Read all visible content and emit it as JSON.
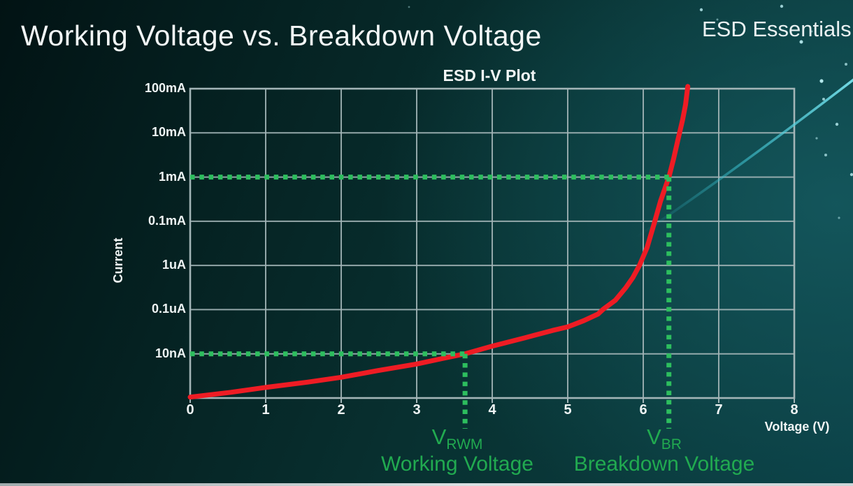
{
  "slide": {
    "title": "Working Voltage vs. Breakdown Voltage",
    "brand": "ESD Essentials"
  },
  "colors": {
    "background_teal": "#0a3e44",
    "grid_gray": "#a3b5b7",
    "curve_red": "#ee1c24",
    "marker_green_text": "#21aa50",
    "marker_green_dots": "#2dbe5e",
    "swoosh_cyan": "#49cfdd",
    "text_white": "#f3f7f7"
  },
  "chart_data": {
    "type": "line",
    "title": "ESD I-V Plot",
    "xlabel": "Voltage (V)",
    "ylabel": "Current",
    "xlim": [
      0,
      8
    ],
    "x_ticks": [
      "0",
      "1",
      "2",
      "3",
      "4",
      "5",
      "6",
      "7",
      "8"
    ],
    "y_scale": "log-decades",
    "y_tick_labels_top_to_bottom": [
      "100mA",
      "10mA",
      "1mA",
      "0.1mA",
      "1uA",
      "0.1uA",
      "10nA"
    ],
    "y_levels": 7,
    "grid": true,
    "legend": "none",
    "series": [
      {
        "name": "ESD device I-V curve",
        "color": "#ee1c24",
        "points_voltage_vs_level": [
          [
            0,
            0.02
          ],
          [
            0.54,
            0.13
          ],
          [
            1.0,
            0.24
          ],
          [
            1.56,
            0.36
          ],
          [
            2.0,
            0.47
          ],
          [
            2.48,
            0.62
          ],
          [
            3.0,
            0.77
          ],
          [
            3.41,
            0.92
          ],
          [
            3.64,
            1.0
          ],
          [
            3.99,
            1.17
          ],
          [
            4.43,
            1.36
          ],
          [
            4.8,
            1.53
          ],
          [
            5.0,
            1.61
          ],
          [
            5.21,
            1.75
          ],
          [
            5.4,
            1.9
          ],
          [
            5.47,
            2.01
          ],
          [
            5.63,
            2.21
          ],
          [
            5.77,
            2.5
          ],
          [
            5.86,
            2.72
          ],
          [
            5.95,
            3.0
          ],
          [
            6.05,
            3.4
          ],
          [
            6.14,
            3.92
          ],
          [
            6.23,
            4.46
          ],
          [
            6.34,
            5.0
          ],
          [
            6.4,
            5.4
          ],
          [
            6.46,
            5.85
          ],
          [
            6.52,
            6.29
          ],
          [
            6.56,
            6.64
          ],
          [
            6.59,
            7.05
          ]
        ]
      }
    ],
    "annotations": {
      "v_rwm": {
        "symbol": "V",
        "subscript": "RWM",
        "caption": "Working Voltage",
        "voltage": 3.64,
        "level": 1,
        "current_label": "10nA"
      },
      "v_br": {
        "symbol": "V",
        "subscript": "BR",
        "caption": "Breakdown Voltage",
        "voltage": 6.34,
        "level": 5,
        "current_label": "1mA"
      }
    }
  }
}
